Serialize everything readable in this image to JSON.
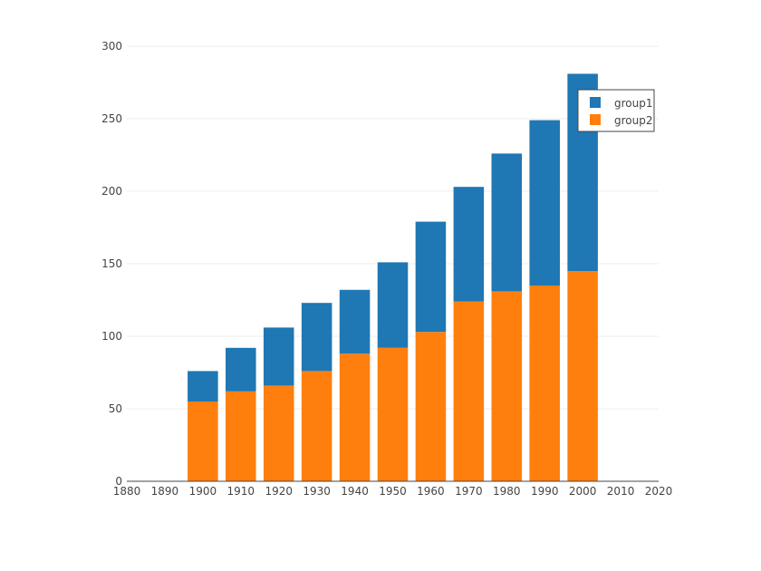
{
  "chart_data": {
    "type": "bar",
    "stacked": true,
    "x": [
      1900,
      1910,
      1920,
      1930,
      1940,
      1950,
      1960,
      1970,
      1980,
      1990,
      2000
    ],
    "series": [
      {
        "name": "group2",
        "color": "#ff7f0e",
        "values": [
          55,
          62,
          66,
          76,
          88,
          92,
          103,
          124,
          131,
          135,
          145
        ]
      },
      {
        "name": "group1",
        "color": "#1f77b4",
        "values": [
          21,
          30,
          40,
          47,
          44,
          59,
          76,
          79,
          95,
          114,
          136
        ]
      }
    ],
    "x_ticks": [
      "1880",
      "1890",
      "1900",
      "1910",
      "1920",
      "1930",
      "1940",
      "1950",
      "1960",
      "1970",
      "1980",
      "1990",
      "2000",
      "2010",
      "2020"
    ],
    "y_ticks": [
      "0",
      "50",
      "100",
      "150",
      "200",
      "250",
      "300"
    ],
    "xlim": [
      1880,
      2020
    ],
    "ylim": [
      0,
      300
    ],
    "grid": "horizontal",
    "legend_position": "top-right",
    "legend": [
      {
        "name": "group1",
        "color": "#1f77b4"
      },
      {
        "name": "group2",
        "color": "#ff7f0e"
      }
    ]
  }
}
